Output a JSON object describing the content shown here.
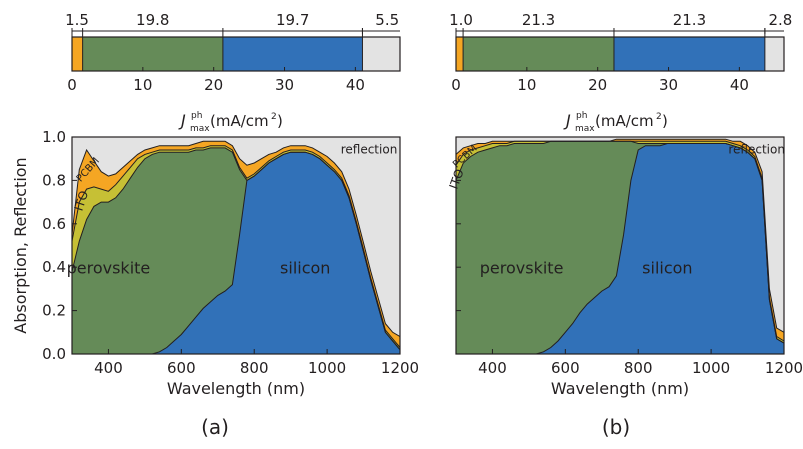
{
  "chart_data": [
    {
      "type": "area",
      "panel_label": "(a)",
      "xlabel": "Wavelength (nm)",
      "ylabel": "Absorption, Reflection",
      "xlim": [
        300,
        1200
      ],
      "ylim": [
        0,
        1.0
      ],
      "xticks": [
        400,
        600,
        800,
        1000,
        1200
      ],
      "yticks": [
        0.0,
        0.2,
        0.4,
        0.6,
        0.8,
        1.0
      ],
      "annotations": [
        "perovskite",
        "silicon",
        "reflection",
        "ITO",
        "PCBM"
      ],
      "x": [
        300,
        320,
        340,
        360,
        380,
        400,
        420,
        440,
        460,
        480,
        500,
        520,
        540,
        560,
        580,
        600,
        620,
        640,
        660,
        680,
        700,
        720,
        740,
        760,
        780,
        800,
        820,
        840,
        860,
        880,
        900,
        920,
        940,
        960,
        980,
        1000,
        1020,
        1040,
        1060,
        1080,
        1100,
        1120,
        1140,
        1160,
        1180,
        1200
      ],
      "silicon_cum": [
        0,
        0,
        0,
        0,
        0,
        0,
        0,
        0,
        0,
        0,
        0,
        0,
        0.01,
        0.03,
        0.06,
        0.09,
        0.13,
        0.17,
        0.21,
        0.24,
        0.27,
        0.29,
        0.32,
        0.55,
        0.8,
        0.82,
        0.85,
        0.88,
        0.9,
        0.92,
        0.93,
        0.93,
        0.93,
        0.92,
        0.9,
        0.87,
        0.84,
        0.8,
        0.72,
        0.6,
        0.47,
        0.34,
        0.22,
        0.1,
        0.06,
        0.02
      ],
      "perovskite_cum": [
        0.38,
        0.52,
        0.62,
        0.68,
        0.7,
        0.7,
        0.72,
        0.76,
        0.81,
        0.86,
        0.9,
        0.92,
        0.93,
        0.93,
        0.93,
        0.93,
        0.93,
        0.94,
        0.94,
        0.95,
        0.95,
        0.95,
        0.93,
        0.85,
        0.8,
        0.82,
        0.85,
        0.88,
        0.9,
        0.92,
        0.93,
        0.93,
        0.93,
        0.92,
        0.9,
        0.87,
        0.84,
        0.8,
        0.72,
        0.6,
        0.47,
        0.34,
        0.22,
        0.1,
        0.06,
        0.02
      ],
      "ito_cum": [
        0.52,
        0.7,
        0.76,
        0.77,
        0.76,
        0.75,
        0.78,
        0.82,
        0.86,
        0.9,
        0.92,
        0.93,
        0.94,
        0.94,
        0.94,
        0.94,
        0.94,
        0.95,
        0.95,
        0.96,
        0.96,
        0.96,
        0.94,
        0.86,
        0.81,
        0.83,
        0.86,
        0.89,
        0.91,
        0.93,
        0.94,
        0.94,
        0.94,
        0.93,
        0.91,
        0.88,
        0.85,
        0.81,
        0.73,
        0.61,
        0.48,
        0.35,
        0.23,
        0.11,
        0.07,
        0.03
      ],
      "pcbm_cum": [
        0.55,
        0.85,
        0.94,
        0.89,
        0.84,
        0.82,
        0.83,
        0.86,
        0.89,
        0.92,
        0.94,
        0.95,
        0.96,
        0.96,
        0.96,
        0.96,
        0.96,
        0.97,
        0.98,
        0.98,
        0.98,
        0.98,
        0.96,
        0.9,
        0.87,
        0.88,
        0.9,
        0.92,
        0.93,
        0.95,
        0.96,
        0.96,
        0.96,
        0.95,
        0.93,
        0.91,
        0.88,
        0.84,
        0.76,
        0.64,
        0.51,
        0.38,
        0.26,
        0.14,
        0.1,
        0.08
      ],
      "bar": {
        "xlabel": "J^ph_max (mA/cm²)",
        "xlim": [
          0,
          46.3
        ],
        "xticks": [
          0,
          10,
          20,
          30,
          40
        ],
        "segments": [
          {
            "name": "PCBM/ITO",
            "value": 1.5,
            "label": "1.5",
            "color": "#f5a623"
          },
          {
            "name": "perovskite",
            "value": 19.8,
            "label": "19.8",
            "color": "#658b58"
          },
          {
            "name": "silicon",
            "value": 19.7,
            "label": "19.7",
            "color": "#3171b8"
          },
          {
            "name": "reflection",
            "value": 5.5,
            "label": "5.5",
            "color": "#e3e3e3"
          }
        ]
      }
    },
    {
      "type": "area",
      "panel_label": "(b)",
      "xlabel": "Wavelength (nm)",
      "ylabel": "",
      "xlim": [
        300,
        1200
      ],
      "ylim": [
        0,
        1.0
      ],
      "xticks": [
        400,
        600,
        800,
        1000,
        1200
      ],
      "yticks": [
        0.0,
        0.2,
        0.4,
        0.6,
        0.8,
        1.0
      ],
      "annotations": [
        "perovskite",
        "silicon",
        "reflection",
        "ITO",
        "PCBM"
      ],
      "x": [
        300,
        320,
        340,
        360,
        380,
        400,
        420,
        440,
        460,
        480,
        500,
        520,
        540,
        560,
        580,
        600,
        620,
        640,
        660,
        680,
        700,
        720,
        740,
        760,
        780,
        800,
        820,
        840,
        860,
        880,
        900,
        920,
        940,
        960,
        980,
        1000,
        1020,
        1040,
        1060,
        1080,
        1100,
        1120,
        1140,
        1160,
        1180,
        1200
      ],
      "silicon_cum": [
        0,
        0,
        0,
        0,
        0,
        0,
        0,
        0,
        0,
        0,
        0,
        0,
        0.01,
        0.03,
        0.06,
        0.1,
        0.14,
        0.19,
        0.23,
        0.26,
        0.29,
        0.31,
        0.36,
        0.55,
        0.8,
        0.94,
        0.96,
        0.96,
        0.96,
        0.97,
        0.97,
        0.97,
        0.97,
        0.97,
        0.97,
        0.97,
        0.97,
        0.97,
        0.96,
        0.95,
        0.93,
        0.9,
        0.8,
        0.25,
        0.07,
        0.05
      ],
      "perovskite_cum": [
        0.8,
        0.88,
        0.91,
        0.93,
        0.94,
        0.95,
        0.96,
        0.96,
        0.97,
        0.97,
        0.97,
        0.97,
        0.97,
        0.98,
        0.98,
        0.98,
        0.98,
        0.98,
        0.98,
        0.98,
        0.98,
        0.98,
        0.98,
        0.98,
        0.98,
        0.97,
        0.97,
        0.97,
        0.97,
        0.97,
        0.97,
        0.97,
        0.97,
        0.97,
        0.97,
        0.97,
        0.97,
        0.97,
        0.96,
        0.95,
        0.93,
        0.9,
        0.8,
        0.25,
        0.07,
        0.05
      ],
      "ito_cum": [
        0.87,
        0.92,
        0.94,
        0.95,
        0.96,
        0.97,
        0.97,
        0.97,
        0.98,
        0.98,
        0.98,
        0.98,
        0.98,
        0.98,
        0.98,
        0.98,
        0.98,
        0.98,
        0.98,
        0.98,
        0.98,
        0.98,
        0.98,
        0.98,
        0.98,
        0.98,
        0.98,
        0.98,
        0.98,
        0.98,
        0.98,
        0.98,
        0.98,
        0.98,
        0.98,
        0.98,
        0.98,
        0.98,
        0.97,
        0.96,
        0.94,
        0.91,
        0.81,
        0.26,
        0.08,
        0.06
      ],
      "pcbm_cum": [
        0.92,
        0.95,
        0.96,
        0.97,
        0.97,
        0.98,
        0.98,
        0.98,
        0.98,
        0.98,
        0.98,
        0.98,
        0.98,
        0.98,
        0.98,
        0.98,
        0.98,
        0.98,
        0.98,
        0.98,
        0.98,
        0.98,
        0.99,
        0.99,
        0.99,
        0.99,
        0.99,
        0.99,
        0.99,
        0.99,
        0.99,
        0.99,
        0.99,
        0.99,
        0.99,
        0.99,
        0.99,
        0.99,
        0.98,
        0.98,
        0.96,
        0.93,
        0.84,
        0.3,
        0.12,
        0.1
      ],
      "bar": {
        "xlabel": "J^ph_max (mA/cm²)",
        "xlim": [
          0,
          46.3
        ],
        "xticks": [
          0,
          10,
          20,
          30,
          40
        ],
        "segments": [
          {
            "name": "PCBM/ITO",
            "value": 1.0,
            "label": "1.0",
            "color": "#f5a623"
          },
          {
            "name": "perovskite",
            "value": 21.3,
            "label": "21.3",
            "color": "#658b58"
          },
          {
            "name": "silicon",
            "value": 21.3,
            "label": "21.3",
            "color": "#3171b8"
          },
          {
            "name": "reflection",
            "value": 2.8,
            "label": "2.8",
            "color": "#e3e3e3"
          }
        ]
      }
    }
  ],
  "colors": {
    "reflection": "#e3e3e3",
    "pcbm": "#f5a623",
    "ito": "#c6c035",
    "perovskite": "#658b58",
    "silicon": "#3171b8",
    "line": "#231f20"
  }
}
